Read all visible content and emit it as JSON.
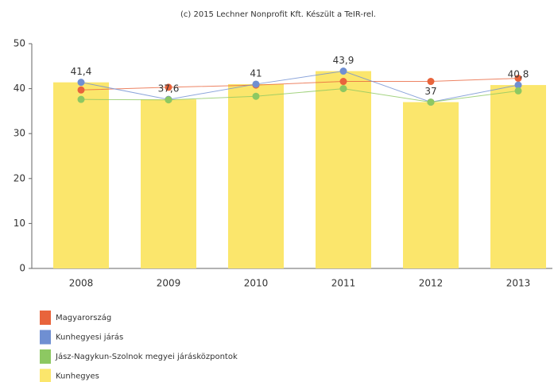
{
  "chart_data": {
    "type": "bar",
    "title": "(c) 2015 Lechner Nonprofit Kft. Készült a TeIR-rel.",
    "categories": [
      "2008",
      "2009",
      "2010",
      "2011",
      "2012",
      "2013"
    ],
    "ylim": [
      0,
      50
    ],
    "yticks": [
      0,
      10,
      20,
      30,
      40,
      50
    ],
    "grid": false,
    "series": [
      {
        "name": "Magyarország",
        "type": "line",
        "color": "#e8643c",
        "values": [
          39.7,
          40.3,
          40.8,
          41.6,
          41.6,
          42.3
        ]
      },
      {
        "name": "Kunhegyesi járás",
        "type": "line",
        "color": "#6f8fd2",
        "values": [
          41.4,
          37.6,
          41,
          43.9,
          37,
          40.8
        ]
      },
      {
        "name": "Jász-Nagykun-Szolnok megyei járásközpontok",
        "type": "line",
        "color": "#8dc862",
        "values": [
          37.6,
          37.5,
          38.3,
          40,
          37,
          39.5
        ]
      },
      {
        "name": "Kunhegyes",
        "type": "bar",
        "color": "#fbe66c",
        "values": [
          41.4,
          37.6,
          41,
          43.9,
          37,
          40.8
        ],
        "value_labels": [
          "41,4",
          "37,6",
          "41",
          "43,9",
          "37",
          "40,8"
        ]
      }
    ]
  }
}
